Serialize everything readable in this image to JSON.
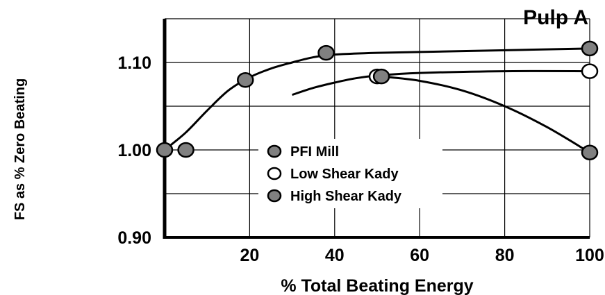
{
  "chart_data": {
    "type": "scatter",
    "title": "Pulp A",
    "xlabel": "% Total Beating Energy",
    "ylabel": "FS as % Zero Beating",
    "xlim": [
      0,
      100
    ],
    "ylim": [
      0.9,
      1.15
    ],
    "xticks": [
      "20",
      "40",
      "60",
      "80",
      "100"
    ],
    "xtick_values": [
      20,
      40,
      60,
      80,
      100
    ],
    "yticks": [
      "0.90",
      "1.00",
      "1.10"
    ],
    "ytick_values": [
      0.9,
      1.0,
      1.1
    ],
    "grid": true,
    "legend_position": "center",
    "series": [
      {
        "name": "PFI Mill",
        "marker": "filled",
        "x": [
          0,
          5,
          19,
          38,
          100
        ],
        "y": [
          1.0,
          1.0,
          1.08,
          1.111,
          1.116
        ],
        "curve": [
          [
            0,
            1.0
          ],
          [
            5,
            1.02
          ],
          [
            10,
            1.045
          ],
          [
            15,
            1.068
          ],
          [
            20,
            1.083
          ],
          [
            25,
            1.093
          ],
          [
            30,
            1.1
          ],
          [
            35,
            1.106
          ],
          [
            40,
            1.109
          ],
          [
            50,
            1.111
          ],
          [
            70,
            1.113
          ],
          [
            100,
            1.116
          ]
        ]
      },
      {
        "name": "Low Shear Kady",
        "marker": "open",
        "x": [
          50,
          100
        ],
        "y": [
          1.084,
          1.09
        ],
        "curve": [
          [
            30,
            1.063
          ],
          [
            35,
            1.071
          ],
          [
            40,
            1.077
          ],
          [
            45,
            1.082
          ],
          [
            50,
            1.085
          ],
          [
            60,
            1.088
          ],
          [
            80,
            1.09
          ],
          [
            100,
            1.09
          ]
        ]
      },
      {
        "name": "High Shear Kady",
        "marker": "filled",
        "x": [
          51,
          100
        ],
        "y": [
          1.084,
          0.997
        ],
        "curve": [
          [
            51,
            1.084
          ],
          [
            60,
            1.079
          ],
          [
            70,
            1.068
          ],
          [
            80,
            1.05
          ],
          [
            90,
            1.026
          ],
          [
            100,
            0.997
          ]
        ]
      }
    ]
  },
  "colors": {
    "filled_marker": "#808080",
    "open_marker": "#ffffff",
    "line": "#000000",
    "grid": "#000000"
  }
}
